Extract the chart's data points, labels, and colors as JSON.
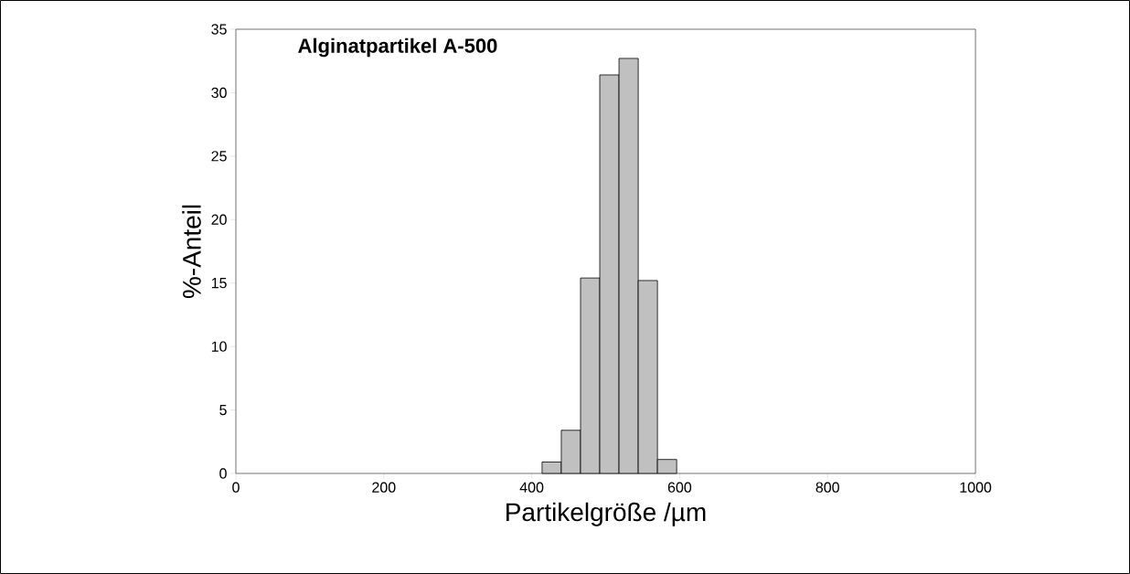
{
  "chart_data": {
    "type": "histogram",
    "title": "Alginatpartikel A-500",
    "xlabel": "Partikelgröße /µm",
    "ylabel": "%-Anteil",
    "bins": [
      414,
      440,
      466,
      492,
      518,
      544,
      570,
      596
    ],
    "values": [
      0.9,
      3.4,
      15.4,
      31.4,
      32.7,
      15.2,
      1.1
    ],
    "color": "#c0c0c0",
    "xlim": [
      0,
      1000
    ],
    "xticks": [
      0,
      200,
      400,
      600,
      800,
      1000
    ],
    "ylim": [
      0,
      35
    ],
    "yticks": [
      0,
      5,
      10,
      15,
      20,
      25,
      30,
      35
    ]
  }
}
